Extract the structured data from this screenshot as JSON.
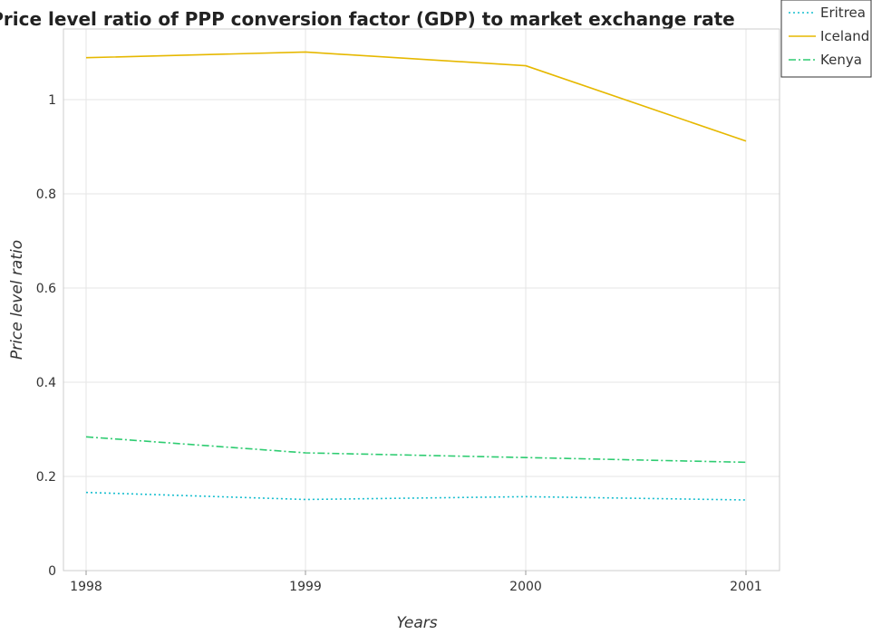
{
  "chart_data": {
    "type": "line",
    "title": "Price level ratio of PPP conversion factor (GDP) to market exchange rate",
    "xlabel": "Years",
    "ylabel": "Price level ratio",
    "categories": [
      "1998",
      "1999",
      "2000",
      "2001"
    ],
    "ylim": [
      0,
      1.15
    ],
    "yticks": [
      0,
      0.2,
      0.4,
      0.6,
      0.8,
      1
    ],
    "ytick_labels": [
      "0",
      "0.2",
      "0.4",
      "0.6",
      "0.8",
      "1"
    ],
    "grid": true,
    "legend_position": "top-right",
    "series": [
      {
        "name": "Eritrea",
        "values": [
          0.166,
          0.151,
          0.157,
          0.15
        ],
        "color": "#17becf",
        "dash": "dotted"
      },
      {
        "name": "Iceland",
        "values": [
          1.089,
          1.101,
          1.072,
          0.912
        ],
        "color": "#e6b800",
        "dash": "solid"
      },
      {
        "name": "Kenya",
        "values": [
          0.284,
          0.25,
          0.24,
          0.23
        ],
        "color": "#2ecc71",
        "dash": "dashdot"
      }
    ]
  }
}
